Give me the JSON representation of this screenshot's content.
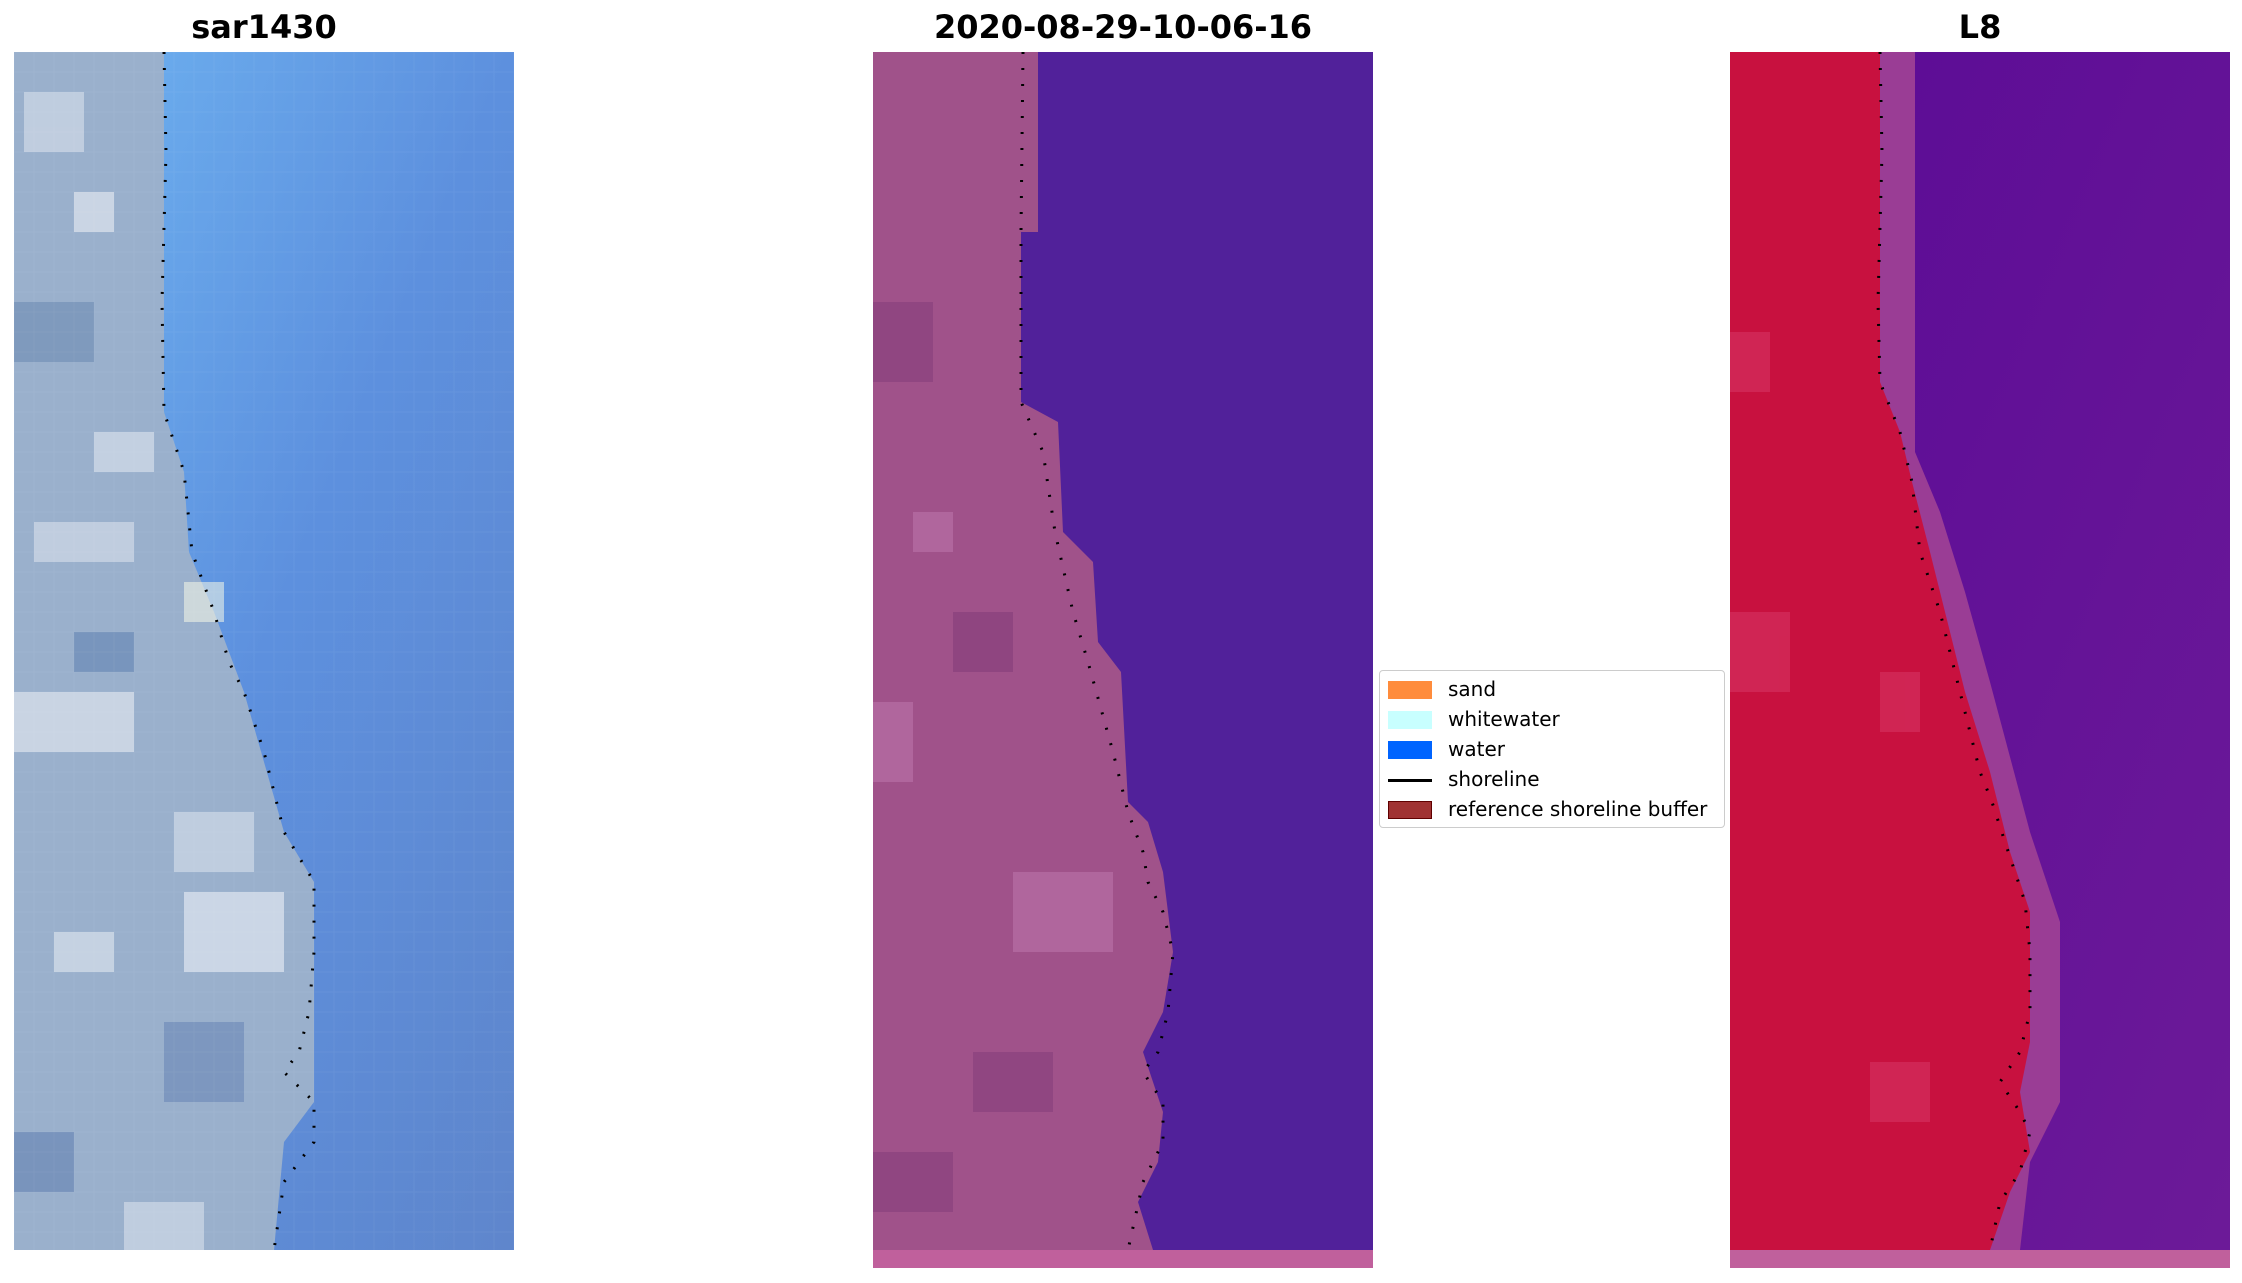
{
  "panels": [
    {
      "title": "sar1430"
    },
    {
      "title": "2020-08-29-10-06-16"
    },
    {
      "title": "L8"
    }
  ],
  "legend": {
    "items": [
      {
        "label": "sand",
        "color": "#ff8c3c",
        "type": "patch"
      },
      {
        "label": "whitewater",
        "color": "#c8ffff",
        "type": "patch"
      },
      {
        "label": "water",
        "color": "#0064ff",
        "type": "patch"
      },
      {
        "label": "shoreline",
        "color": "#000000",
        "type": "line"
      },
      {
        "label": "reference shoreline buffer",
        "color": "#a03232",
        "type": "patch"
      }
    ]
  },
  "colors": {
    "rgb_water": "#5a8de0",
    "rgb_land": "#8aa6c8",
    "classified_water": "#51219a",
    "classified_land": "#a0528a",
    "classified_buffer_strip": "#c0609c",
    "nir_land": "#c8113f",
    "nir_water": "#5a0a96",
    "shoreline": "#000000"
  }
}
